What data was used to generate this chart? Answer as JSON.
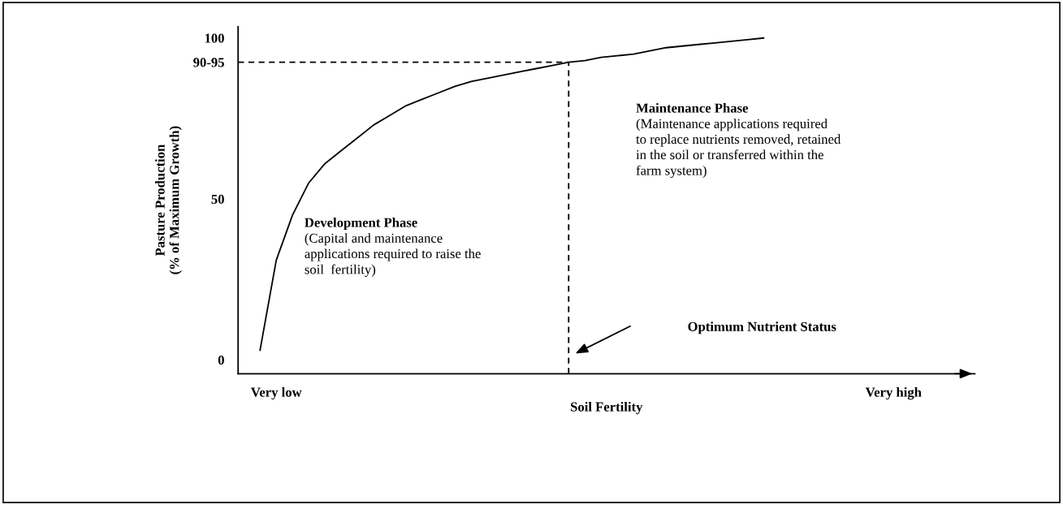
{
  "chart_data": {
    "type": "line",
    "xlabel": "Soil Fertility",
    "ylabel": "Pasture Production\n(% of Maximum Growth)",
    "categories": [
      null,
      "Very low",
      null,
      null,
      null,
      null,
      null,
      null,
      null,
      null,
      null,
      null,
      null,
      null,
      null,
      null,
      null,
      null,
      null,
      null,
      null,
      null,
      null,
      null,
      null,
      null,
      null,
      null,
      null,
      null,
      null,
      null,
      null,
      null,
      null,
      null,
      null,
      null,
      null,
      "Very high"
    ],
    "ylim": [
      -4.3,
      103.5
    ],
    "yticks": [
      0,
      50,
      {
        "value": 92.5,
        "label": "90-95"
      },
      100
    ],
    "grid": false,
    "legend": false,
    "marker": "none",
    "line_style": "solid",
    "series": [
      {
        "color": "#000000",
        "values": [
          3,
          31,
          45,
          55,
          61,
          65,
          69,
          73,
          76,
          79,
          81,
          83,
          85,
          86.5,
          87.5,
          88.5,
          89.5,
          90.5,
          91.5,
          92.5,
          93,
          94,
          94.5,
          95,
          96,
          97,
          97.5,
          98,
          98.5,
          99,
          99.5,
          100,
          null,
          null,
          null,
          null,
          null,
          null,
          null,
          null
        ]
      }
    ],
    "ref_lines": [
      {
        "axis": "y",
        "value": 92.5,
        "line_style": "dashed",
        "color": "#000000"
      }
    ],
    "annotations": [
      "Maintenance Phase",
      "(Maintenance applications required\nto replace nutrients removed, retained\nin the soil or transferred within the\nfarm system)",
      "Development Phase",
      "(Capital and maintenance\napplications required to raise the\nsoil  fertility)",
      "Optimum Nutrient Status"
    ]
  }
}
